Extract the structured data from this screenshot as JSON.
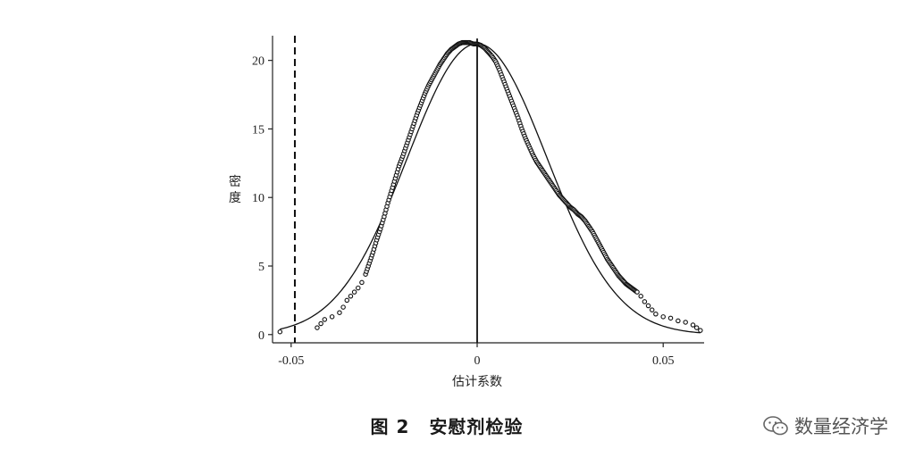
{
  "chart_data": {
    "type": "scatter",
    "title": "",
    "xlabel": "估计系数",
    "ylabel": "密度",
    "xlim": [
      -0.055,
      0.061
    ],
    "ylim": [
      -0.6,
      21.8
    ],
    "x_ticks": [
      -0.05,
      0,
      0.05
    ],
    "x_tick_labels": [
      "-0.05",
      "0",
      "0.05"
    ],
    "y_ticks": [
      0,
      5,
      10,
      15,
      20
    ],
    "y_tick_labels": [
      "0",
      "5",
      "10",
      "15",
      "20"
    ],
    "true_estimate_line": -0.049,
    "zero_line": 0,
    "reference_normal": {
      "mean": 0,
      "sd": 0.0188
    },
    "series": [
      {
        "type": "scatter",
        "points": [
          [
            -0.053,
            0.2
          ],
          [
            -0.043,
            0.5
          ],
          [
            -0.042,
            0.8
          ],
          [
            -0.041,
            1.1
          ],
          [
            -0.039,
            1.3
          ],
          [
            -0.037,
            1.6
          ],
          [
            -0.036,
            2.0
          ],
          [
            -0.035,
            2.5
          ],
          [
            -0.034,
            2.8
          ],
          [
            -0.033,
            3.1
          ],
          [
            -0.032,
            3.4
          ],
          [
            -0.031,
            3.8
          ],
          [
            -0.03,
            4.4
          ],
          [
            -0.029,
            5.2
          ],
          [
            -0.028,
            6.0
          ],
          [
            -0.027,
            6.9
          ],
          [
            -0.026,
            7.7
          ],
          [
            -0.025,
            8.6
          ],
          [
            -0.024,
            9.6
          ],
          [
            -0.023,
            10.5
          ],
          [
            -0.022,
            11.4
          ],
          [
            -0.021,
            12.3
          ],
          [
            -0.02,
            13.0
          ],
          [
            -0.019,
            13.8
          ],
          [
            -0.018,
            14.6
          ],
          [
            -0.017,
            15.4
          ],
          [
            -0.016,
            16.2
          ],
          [
            -0.015,
            16.9
          ],
          [
            -0.014,
            17.6
          ],
          [
            -0.013,
            18.2
          ],
          [
            -0.012,
            18.7
          ],
          [
            -0.011,
            19.2
          ],
          [
            -0.01,
            19.7
          ],
          [
            -0.009,
            20.1
          ],
          [
            -0.008,
            20.5
          ],
          [
            -0.007,
            20.8
          ],
          [
            -0.006,
            21.0
          ],
          [
            -0.005,
            21.2
          ],
          [
            -0.004,
            21.3
          ],
          [
            -0.003,
            21.3
          ],
          [
            -0.002,
            21.3
          ],
          [
            -0.001,
            21.2
          ],
          [
            0.0,
            21.2
          ],
          [
            0.001,
            21.1
          ],
          [
            0.002,
            20.9
          ],
          [
            0.003,
            20.6
          ],
          [
            0.004,
            20.3
          ],
          [
            0.005,
            19.9
          ],
          [
            0.006,
            19.3
          ],
          [
            0.007,
            18.6
          ],
          [
            0.008,
            17.9
          ],
          [
            0.009,
            17.2
          ],
          [
            0.01,
            16.5
          ],
          [
            0.011,
            15.8
          ],
          [
            0.012,
            15.0
          ],
          [
            0.013,
            14.3
          ],
          [
            0.014,
            13.7
          ],
          [
            0.015,
            13.1
          ],
          [
            0.016,
            12.6
          ],
          [
            0.017,
            12.2
          ],
          [
            0.018,
            11.8
          ],
          [
            0.019,
            11.4
          ],
          [
            0.02,
            11.0
          ],
          [
            0.021,
            10.6
          ],
          [
            0.022,
            10.2
          ],
          [
            0.023,
            9.9
          ],
          [
            0.024,
            9.6
          ],
          [
            0.025,
            9.3
          ],
          [
            0.026,
            9.1
          ],
          [
            0.027,
            8.8
          ],
          [
            0.028,
            8.6
          ],
          [
            0.029,
            8.3
          ],
          [
            0.03,
            7.9
          ],
          [
            0.031,
            7.5
          ],
          [
            0.032,
            7.0
          ],
          [
            0.033,
            6.5
          ],
          [
            0.034,
            6.0
          ],
          [
            0.035,
            5.5
          ],
          [
            0.036,
            5.1
          ],
          [
            0.037,
            4.7
          ],
          [
            0.038,
            4.3
          ],
          [
            0.039,
            4.0
          ],
          [
            0.04,
            3.7
          ],
          [
            0.041,
            3.5
          ],
          [
            0.042,
            3.3
          ],
          [
            0.043,
            3.1
          ],
          [
            0.044,
            2.8
          ],
          [
            0.045,
            2.4
          ],
          [
            0.046,
            2.1
          ],
          [
            0.047,
            1.8
          ],
          [
            0.048,
            1.5
          ],
          [
            0.05,
            1.3
          ],
          [
            0.052,
            1.2
          ],
          [
            0.054,
            1.0
          ],
          [
            0.056,
            0.9
          ],
          [
            0.058,
            0.7
          ],
          [
            0.059,
            0.5
          ],
          [
            0.06,
            0.3
          ]
        ]
      }
    ],
    "grid": false,
    "legend": "none"
  },
  "caption": {
    "figure_no": "图 2",
    "title": "安慰剂检验"
  },
  "watermark": {
    "text": "数量经济学",
    "icon": "wechat-icon"
  }
}
